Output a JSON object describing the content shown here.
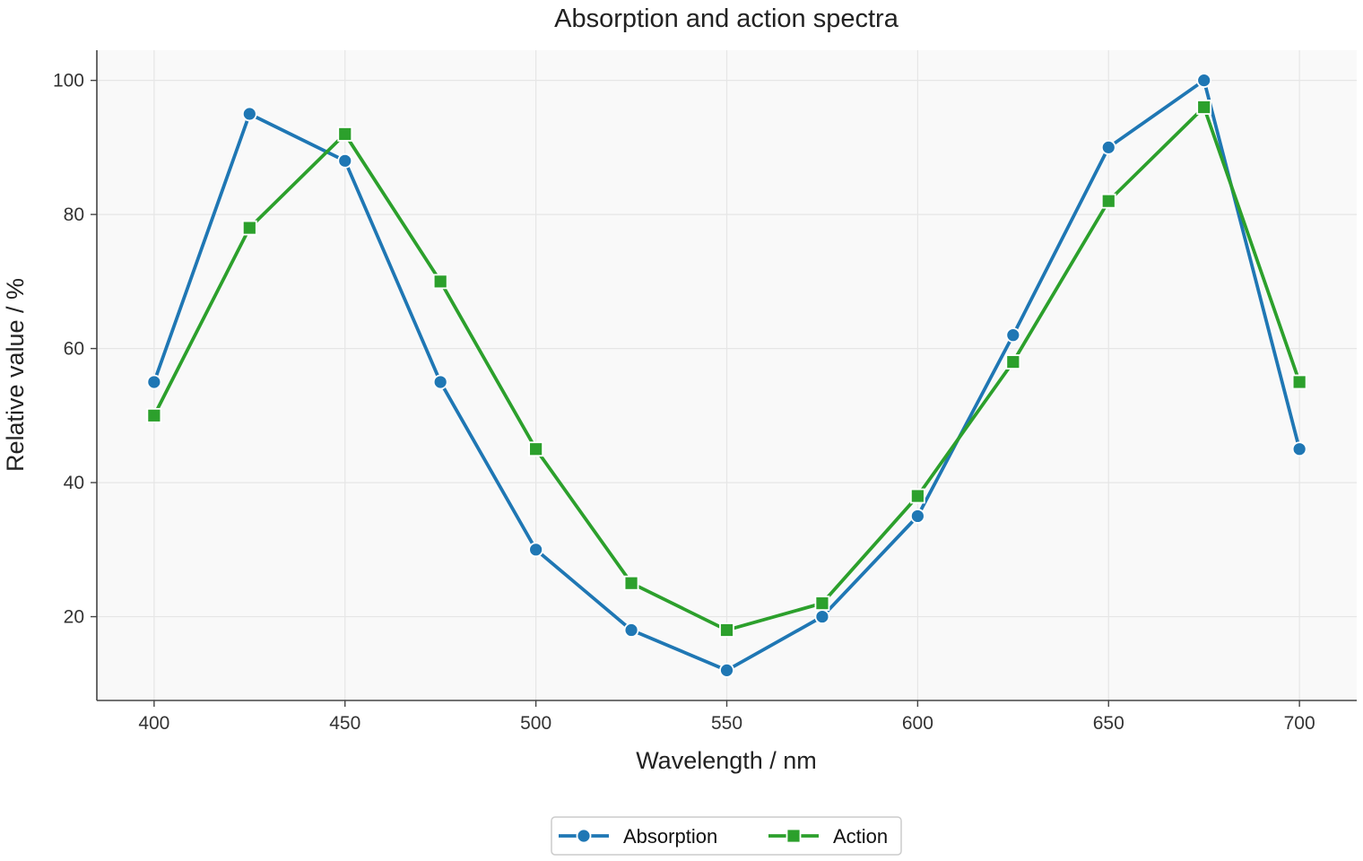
{
  "chart_data": {
    "type": "line",
    "title": "Absorption and action spectra",
    "xlabel": "Wavelength / nm",
    "ylabel": "Relative value / %",
    "x": [
      400,
      425,
      450,
      475,
      500,
      525,
      550,
      575,
      600,
      625,
      650,
      675,
      700
    ],
    "xlim": [
      385,
      715
    ],
    "ylim": [
      7.5,
      104.5
    ],
    "xticks": [
      400,
      450,
      500,
      550,
      600,
      650,
      700
    ],
    "yticks": [
      20,
      40,
      60,
      80,
      100
    ],
    "grid": true,
    "legend": "bottom-center",
    "series": [
      {
        "name": "Absorption",
        "marker": "circle",
        "color": "#1f77b4",
        "values": [
          55,
          95,
          88,
          55,
          30,
          18,
          12,
          20,
          35,
          62,
          90,
          100,
          45
        ]
      },
      {
        "name": "Action",
        "marker": "square",
        "color": "#2ca02c",
        "values": [
          50,
          78,
          92,
          70,
          45,
          25,
          18,
          22,
          38,
          58,
          82,
          96,
          55
        ]
      }
    ]
  }
}
